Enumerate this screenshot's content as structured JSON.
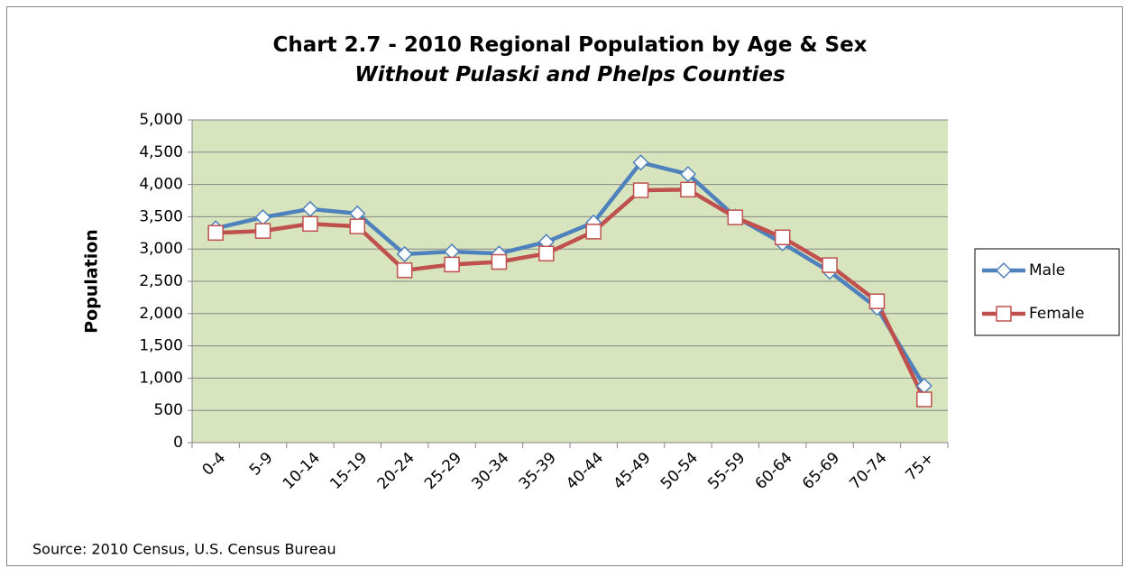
{
  "chart_data": {
    "type": "line",
    "title": "Chart 2.7 - 2010 Regional Population by Age & Sex",
    "subtitle": "Without Pulaski and Phelps Counties",
    "y_label": "Population",
    "source": "Source: 2010 Census, U.S. Census Bureau",
    "categories": [
      "0-4",
      "5-9",
      "10-14",
      "15-19",
      "20-24",
      "25-29",
      "30-34",
      "35-39",
      "40-44",
      "45-49",
      "50-54",
      "55-59",
      "60-64",
      "65-69",
      "70-74",
      "75+"
    ],
    "series": [
      {
        "name": "Male",
        "color": "#4f81bd",
        "marker": "diamond",
        "values": [
          3320,
          3490,
          3620,
          3550,
          2920,
          2960,
          2930,
          3110,
          3410,
          4340,
          4160,
          3500,
          3090,
          2650,
          2090,
          880
        ]
      },
      {
        "name": "Female",
        "color": "#c0504d",
        "marker": "square",
        "values": [
          3250,
          3280,
          3390,
          3350,
          2670,
          2760,
          2800,
          2930,
          3270,
          3910,
          3920,
          3490,
          3180,
          2750,
          2190,
          670
        ]
      }
    ],
    "ylim": [
      0,
      5000
    ],
    "yticks": [
      0,
      500,
      {
        "value": 1000,
        "label": "1,000"
      },
      {
        "value": 1500,
        "label": "1,500"
      },
      {
        "value": 2000,
        "label": "2,000"
      },
      {
        "value": 2500,
        "label": "2,500"
      },
      {
        "value": 3000,
        "label": "3,000"
      },
      {
        "value": 3500,
        "label": "3,500"
      },
      {
        "value": 4000,
        "label": "4,000"
      },
      {
        "value": 4500,
        "label": "4,500"
      },
      {
        "value": 5000,
        "label": "5,000"
      }
    ],
    "grid": true,
    "plot_background": "#d7e4bd",
    "legend": "right"
  }
}
